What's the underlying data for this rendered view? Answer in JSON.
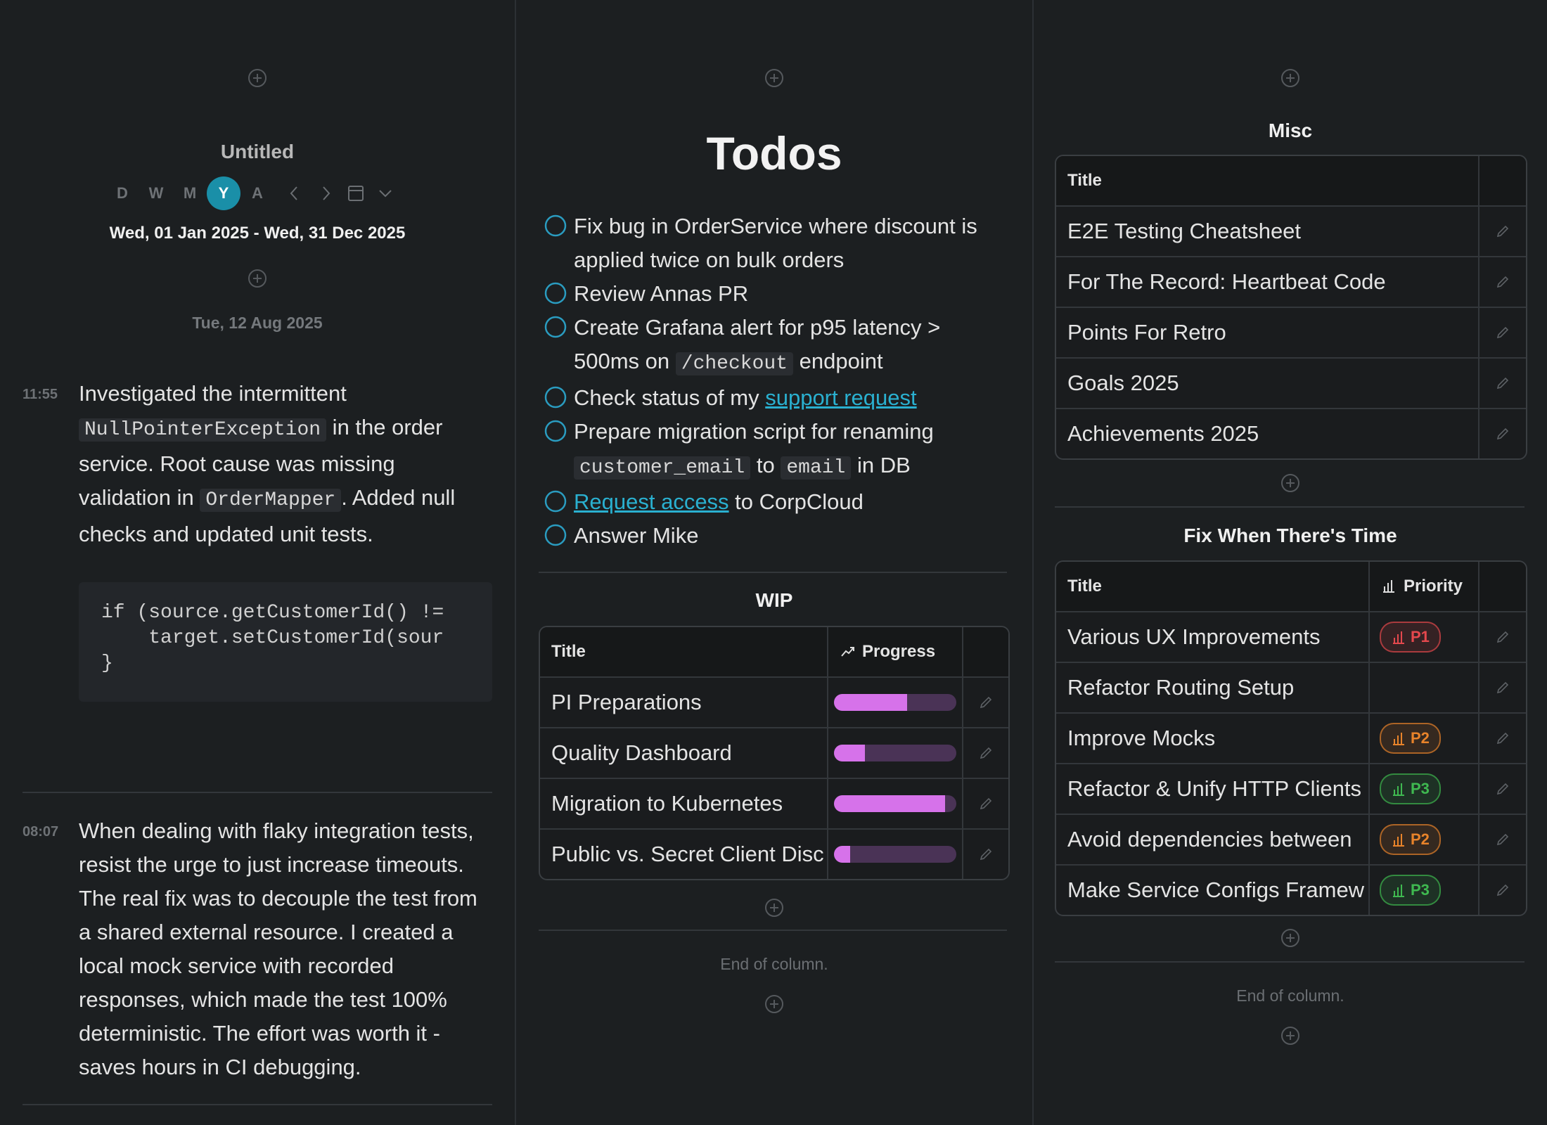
{
  "journal": {
    "title": "Untitled",
    "views": [
      "D",
      "W",
      "M",
      "Y",
      "A"
    ],
    "active_view": "Y",
    "range": "Wed, 01 Jan 2025 - Wed, 31 Dec 2025",
    "date": "Tue, 12 Aug 2025",
    "entries": [
      {
        "time": "11:55",
        "body": [
          {
            "text": "Investigated the intermittent "
          },
          {
            "code": "NullPointerException"
          },
          {
            "text": " in the order service. Root cause was missing validation in "
          },
          {
            "code": "OrderMapper"
          },
          {
            "text": ". Added null checks and updated unit tests."
          }
        ],
        "code": [
          "if (source.getCustomerId() !=",
          "    target.setCustomerId(sour",
          "}"
        ]
      },
      {
        "time": "08:07",
        "body": [
          {
            "text": "When dealing with flaky integration tests, resist the urge to just increase timeouts. The real fix was to decouple the test from a shared external resource. I created a local mock service with recorded responses, which made the test 100% deterministic. The effort was worth it - saves hours in CI debugging."
          }
        ]
      }
    ]
  },
  "todos": {
    "title": "Todos",
    "items": [
      [
        {
          "text": "Fix bug in OrderService where discount is applied twice on bulk orders"
        }
      ],
      [
        {
          "text": "Review Annas PR"
        }
      ],
      [
        {
          "text": "Create Grafana alert for p95 latency > 500ms on "
        },
        {
          "code": "/checkout"
        },
        {
          "text": " endpoint"
        }
      ],
      [
        {
          "text": "Check status of my "
        },
        {
          "link": "support request"
        }
      ],
      [
        {
          "text": "Prepare migration script for renaming "
        },
        {
          "code": "customer_email"
        },
        {
          "text": " to "
        },
        {
          "code": "email"
        },
        {
          "text": " in DB"
        }
      ],
      [
        {
          "link": "Request access"
        },
        {
          "text": " to CorpCloud"
        }
      ],
      [
        {
          "text": "Answer Mike"
        }
      ]
    ]
  },
  "wip": {
    "title": "WIP",
    "columns": [
      "Title",
      "Progress"
    ],
    "progress_range": [
      0,
      100
    ],
    "rows": [
      {
        "title": "PI Preparations",
        "progress": 60
      },
      {
        "title": "Quality Dashboard",
        "progress": 25
      },
      {
        "title": "Migration to Kubernetes",
        "progress": 91
      },
      {
        "title": "Public vs. Secret Client Disc",
        "progress": 13
      }
    ],
    "end_text": "End of column."
  },
  "misc": {
    "title": "Misc",
    "columns": [
      "Title"
    ],
    "rows": [
      "E2E Testing Cheatsheet",
      "For The Record: Heartbeat Code",
      "Points For Retro",
      "Goals 2025",
      "Achievements 2025"
    ]
  },
  "fix": {
    "title": "Fix When There's Time",
    "columns": [
      "Title",
      "Priority"
    ],
    "rows": [
      {
        "title": "Various UX Improvements",
        "priority": "P1",
        "color": "#e5484d"
      },
      {
        "title": "Refactor Routing Setup",
        "priority": null,
        "color": null
      },
      {
        "title": "Improve Mocks",
        "priority": "P2",
        "color": "#e8832a"
      },
      {
        "title": "Refactor & Unify HTTP Clients",
        "priority": "P3",
        "color": "#3fb950"
      },
      {
        "title": "Avoid dependencies between",
        "priority": "P2",
        "color": "#e8832a"
      },
      {
        "title": "Make Service Configs Framew",
        "priority": "P3",
        "color": "#3fb950"
      }
    ],
    "end_text": "End of column."
  }
}
